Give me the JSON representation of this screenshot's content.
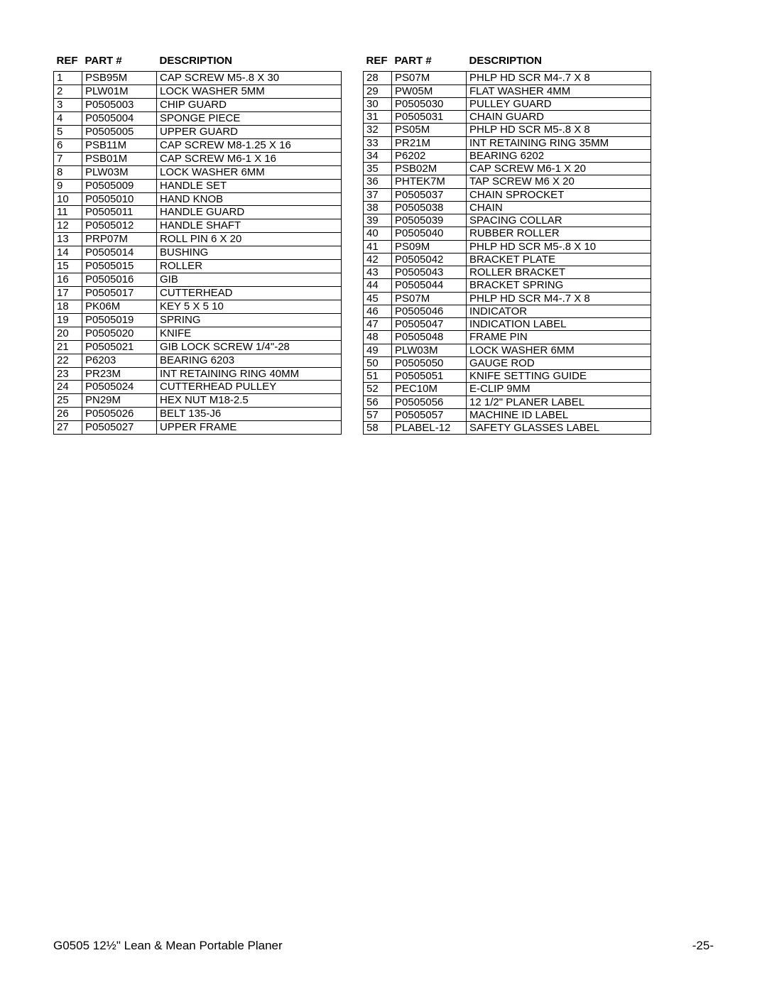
{
  "headers": {
    "ref": "REF",
    "part": "PART #",
    "desc": "DESCRIPTION"
  },
  "footer": {
    "left": "G0505 12½\" Lean & Mean Portable Planer",
    "right": "-25-"
  },
  "left_rows": [
    {
      "ref": "1",
      "part": "PSB95M",
      "desc": "CAP SCREW M5-.8 X 30"
    },
    {
      "ref": "2",
      "part": "PLW01M",
      "desc": "LOCK WASHER 5MM"
    },
    {
      "ref": "3",
      "part": "P0505003",
      "desc": "CHIP GUARD"
    },
    {
      "ref": "4",
      "part": "P0505004",
      "desc": "SPONGE PIECE"
    },
    {
      "ref": "5",
      "part": "P0505005",
      "desc": "UPPER GUARD"
    },
    {
      "ref": "6",
      "part": "PSB11M",
      "desc": "CAP SCREW M8-1.25 X 16"
    },
    {
      "ref": "7",
      "part": "PSB01M",
      "desc": "CAP SCREW M6-1 X 16"
    },
    {
      "ref": "8",
      "part": "PLW03M",
      "desc": "LOCK WASHER 6MM"
    },
    {
      "ref": "9",
      "part": "P0505009",
      "desc": "HANDLE SET"
    },
    {
      "ref": "10",
      "part": "P0505010",
      "desc": "HAND KNOB"
    },
    {
      "ref": "11",
      "part": "P0505011",
      "desc": "HANDLE GUARD"
    },
    {
      "ref": "12",
      "part": "P0505012",
      "desc": "HANDLE SHAFT"
    },
    {
      "ref": "13",
      "part": "PRP07M",
      "desc": "ROLL PIN 6 X 20"
    },
    {
      "ref": "14",
      "part": "P0505014",
      "desc": "BUSHING"
    },
    {
      "ref": "15",
      "part": "P0505015",
      "desc": "ROLLER"
    },
    {
      "ref": "16",
      "part": "P0505016",
      "desc": "GIB"
    },
    {
      "ref": "17",
      "part": "P0505017",
      "desc": "CUTTERHEAD"
    },
    {
      "ref": "18",
      "part": "PK06M",
      "desc": "KEY 5 X 5 10"
    },
    {
      "ref": "19",
      "part": "P0505019",
      "desc": "SPRING"
    },
    {
      "ref": "20",
      "part": "P0505020",
      "desc": "KNIFE"
    },
    {
      "ref": "21",
      "part": "P0505021",
      "desc": "GIB LOCK SCREW 1/4\"-28"
    },
    {
      "ref": "22",
      "part": "P6203",
      "desc": "BEARING 6203"
    },
    {
      "ref": "23",
      "part": "PR23M",
      "desc": "INT RETAINING RING 40MM"
    },
    {
      "ref": "24",
      "part": "P0505024",
      "desc": "CUTTERHEAD PULLEY"
    },
    {
      "ref": "25",
      "part": "PN29M",
      "desc": "HEX NUT M18-2.5"
    },
    {
      "ref": "26",
      "part": "P0505026",
      "desc": "BELT 135-J6"
    },
    {
      "ref": "27",
      "part": "P0505027",
      "desc": "UPPER FRAME"
    }
  ],
  "right_rows": [
    {
      "ref": "28",
      "part": "PS07M",
      "desc": "PHLP HD SCR M4-.7 X 8"
    },
    {
      "ref": "29",
      "part": "PW05M",
      "desc": "FLAT WASHER 4MM"
    },
    {
      "ref": "30",
      "part": "P0505030",
      "desc": "PULLEY GUARD"
    },
    {
      "ref": "31",
      "part": "P0505031",
      "desc": "CHAIN GUARD"
    },
    {
      "ref": "32",
      "part": "PS05M",
      "desc": "PHLP HD SCR M5-.8 X 8"
    },
    {
      "ref": "33",
      "part": "PR21M",
      "desc": "INT RETAINING RING 35MM"
    },
    {
      "ref": "34",
      "part": "P6202",
      "desc": "BEARING 6202"
    },
    {
      "ref": "35",
      "part": "PSB02M",
      "desc": "CAP SCREW M6-1 X 20"
    },
    {
      "ref": "36",
      "part": "PHTEK7M",
      "desc": "TAP SCREW M6 X 20"
    },
    {
      "ref": "37",
      "part": "P0505037",
      "desc": "CHAIN SPROCKET"
    },
    {
      "ref": "38",
      "part": "P0505038",
      "desc": "CHAIN"
    },
    {
      "ref": "39",
      "part": "P0505039",
      "desc": "SPACING COLLAR"
    },
    {
      "ref": "40",
      "part": "P0505040",
      "desc": "RUBBER ROLLER"
    },
    {
      "ref": "41",
      "part": "PS09M",
      "desc": "PHLP HD SCR M5-.8 X 10"
    },
    {
      "ref": "42",
      "part": "P0505042",
      "desc": "BRACKET PLATE"
    },
    {
      "ref": "43",
      "part": "P0505043",
      "desc": "ROLLER BRACKET"
    },
    {
      "ref": "44",
      "part": "P0505044",
      "desc": "BRACKET SPRING"
    },
    {
      "ref": "45",
      "part": "PS07M",
      "desc": "PHLP HD SCR M4-.7 X 8"
    },
    {
      "ref": "46",
      "part": "P0505046",
      "desc": "INDICATOR"
    },
    {
      "ref": "47",
      "part": "P0505047",
      "desc": "INDICATION LABEL"
    },
    {
      "ref": "48",
      "part": "P0505048",
      "desc": "FRAME PIN"
    },
    {
      "ref": "49",
      "part": "PLW03M",
      "desc": "LOCK WASHER 6MM"
    },
    {
      "ref": "50",
      "part": "P0505050",
      "desc": "GAUGE ROD"
    },
    {
      "ref": "51",
      "part": "P0505051",
      "desc": "KNIFE SETTING GUIDE"
    },
    {
      "ref": "52",
      "part": "PEC10M",
      "desc": "E-CLIP 9MM"
    },
    {
      "ref": "56",
      "part": "P0505056",
      "desc": "12 1/2\" PLANER LABEL"
    },
    {
      "ref": "57",
      "part": "P0505057",
      "desc": "MACHINE ID LABEL"
    },
    {
      "ref": "58",
      "part": "PLABEL-12",
      "desc": "SAFETY GLASSES LABEL"
    }
  ]
}
